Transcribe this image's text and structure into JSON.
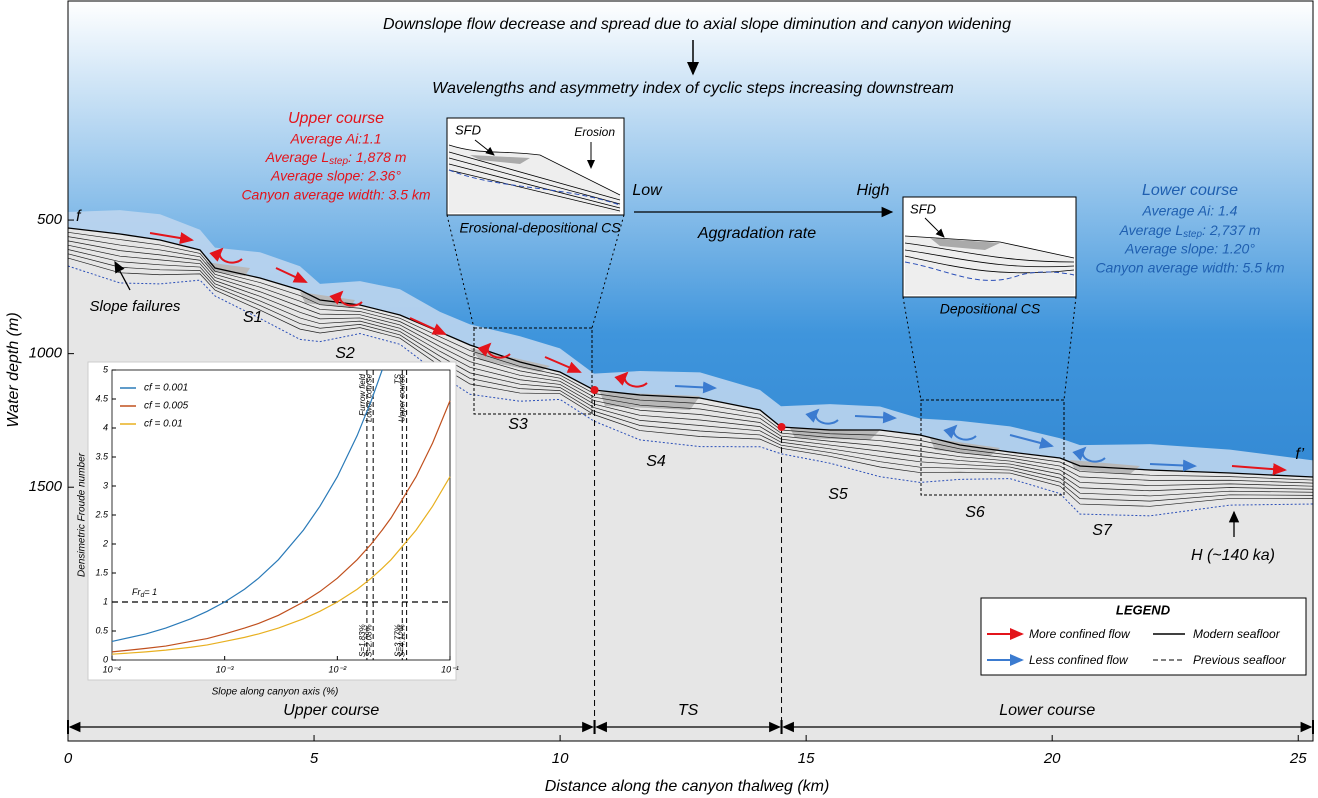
{
  "header": {
    "line1": "Downslope flow decrease and spread due to axial slope diminution and canyon widening",
    "line2": "Wavelengths and asymmetry index of cyclic steps increasing downstream"
  },
  "upper_course": {
    "title": "Upper course",
    "ai": "Average Ai:1.1",
    "lstep": {
      "prefix": "Average L",
      "sub": "step",
      "suffix": ": 1,878 m"
    },
    "slope": "Average slope: 2.36°",
    "width": "Canyon average width: 3.5 km"
  },
  "lower_course": {
    "title": "Lower course",
    "ai": "Average Ai: 1.4",
    "lstep": {
      "prefix": "Average L",
      "sub": "step",
      "suffix": ": 2,737 m"
    },
    "slope": "Average slope: 1.20°",
    "width": "Canyon average width: 5.5 km"
  },
  "aggradation": {
    "low": "Low",
    "high": "High",
    "label": "Aggradation rate"
  },
  "detail_erosional": {
    "sfd": "SFD",
    "erosion": "Erosion",
    "caption": "Erosional-depositional CS"
  },
  "detail_depositional": {
    "sfd": "SFD",
    "caption": "Depositional CS"
  },
  "profile_labels": {
    "start": "f",
    "end": "f’",
    "slope_failures": "Slope failures",
    "horizon": "H (~140 ka)",
    "steps": [
      "S1",
      "S2",
      "S3",
      "S4",
      "S5",
      "S6",
      "S7"
    ]
  },
  "main_axes": {
    "xlabel": "Distance along the canyon thalweg (km)",
    "ylabel": "Water depth (m)",
    "xlim": [
      0,
      25.3
    ],
    "xticks": [
      0,
      5,
      10,
      15,
      20,
      25
    ],
    "ylim": [
      -320,
      2450
    ],
    "yticks": [
      500,
      1000,
      1500
    ]
  },
  "segments": [
    {
      "label": "Upper course",
      "from": 0,
      "to": 10.7
    },
    {
      "label": "TS",
      "from": 10.7,
      "to": 14.5
    },
    {
      "label": "Lower course",
      "from": 14.5,
      "to": 25.3
    }
  ],
  "legend": {
    "title": "LEGEND",
    "more_confined": "More confined flow",
    "modern": "Modern seafloor",
    "less_confined": "Less confined flow",
    "previous": "Previous seafloor"
  },
  "chart_data": {
    "type": "line",
    "xlabel": "Slope along canyon axis (%)",
    "ylabel": "Densimetric Froude number",
    "log_x": true,
    "xlim": [
      0.0001,
      0.1
    ],
    "ylim": [
      0,
      5
    ],
    "xticks": [
      {
        "value": 0.0001,
        "label": "10⁻⁴"
      },
      {
        "value": 0.001,
        "label": "10⁻³"
      },
      {
        "value": 0.01,
        "label": "10⁻²"
      },
      {
        "value": 0.1,
        "label": "10⁻¹"
      }
    ],
    "yticks": [
      0,
      0.5,
      1,
      1.5,
      2,
      2.5,
      3,
      3.5,
      4,
      4.5,
      5
    ],
    "x": [
      0.0001,
      0.0002,
      0.0003,
      0.0005,
      0.0007,
      0.001,
      0.0015,
      0.002,
      0.003,
      0.005,
      0.007,
      0.01,
      0.015,
      0.02,
      0.025,
      0.03,
      0.05,
      0.07,
      0.1
    ],
    "series": [
      {
        "name": "cf = 0.001",
        "color": "#2a7ab8",
        "values": [
          0.32,
          0.45,
          0.55,
          0.71,
          0.84,
          1,
          1.22,
          1.41,
          1.73,
          2.24,
          2.65,
          3.16,
          3.87,
          4.47,
          5,
          null,
          null,
          null,
          null
        ]
      },
      {
        "name": "cf = 0.005",
        "color": "#c0501e",
        "values": [
          0.14,
          0.2,
          0.24,
          0.32,
          0.37,
          0.45,
          0.55,
          0.63,
          0.77,
          1,
          1.18,
          1.41,
          1.73,
          2,
          2.24,
          2.45,
          3.16,
          3.74,
          4.47
        ]
      },
      {
        "name": "cf = 0.01",
        "color": "#e8b020",
        "values": [
          0.1,
          0.14,
          0.17,
          0.22,
          0.26,
          0.32,
          0.39,
          0.45,
          0.55,
          0.71,
          0.84,
          1,
          1.22,
          1.41,
          1.58,
          1.73,
          2.24,
          2.65,
          3.16
        ]
      }
    ],
    "hline": {
      "value": 1,
      "label": "Fr",
      "label_sub": "d",
      "label_rest": "= 1"
    },
    "vlines": [
      {
        "x": 0.0183,
        "top": "Furrow field",
        "bottom": "S=1.83%"
      },
      {
        "x": 0.0208,
        "top": "Lower course",
        "bottom": "S=2.08%"
      },
      {
        "x": 0.0377,
        "top": "TS",
        "bottom": "S=3.77%"
      },
      {
        "x": 0.0412,
        "top": "Upper course",
        "bottom": "S=4.12%"
      }
    ]
  }
}
